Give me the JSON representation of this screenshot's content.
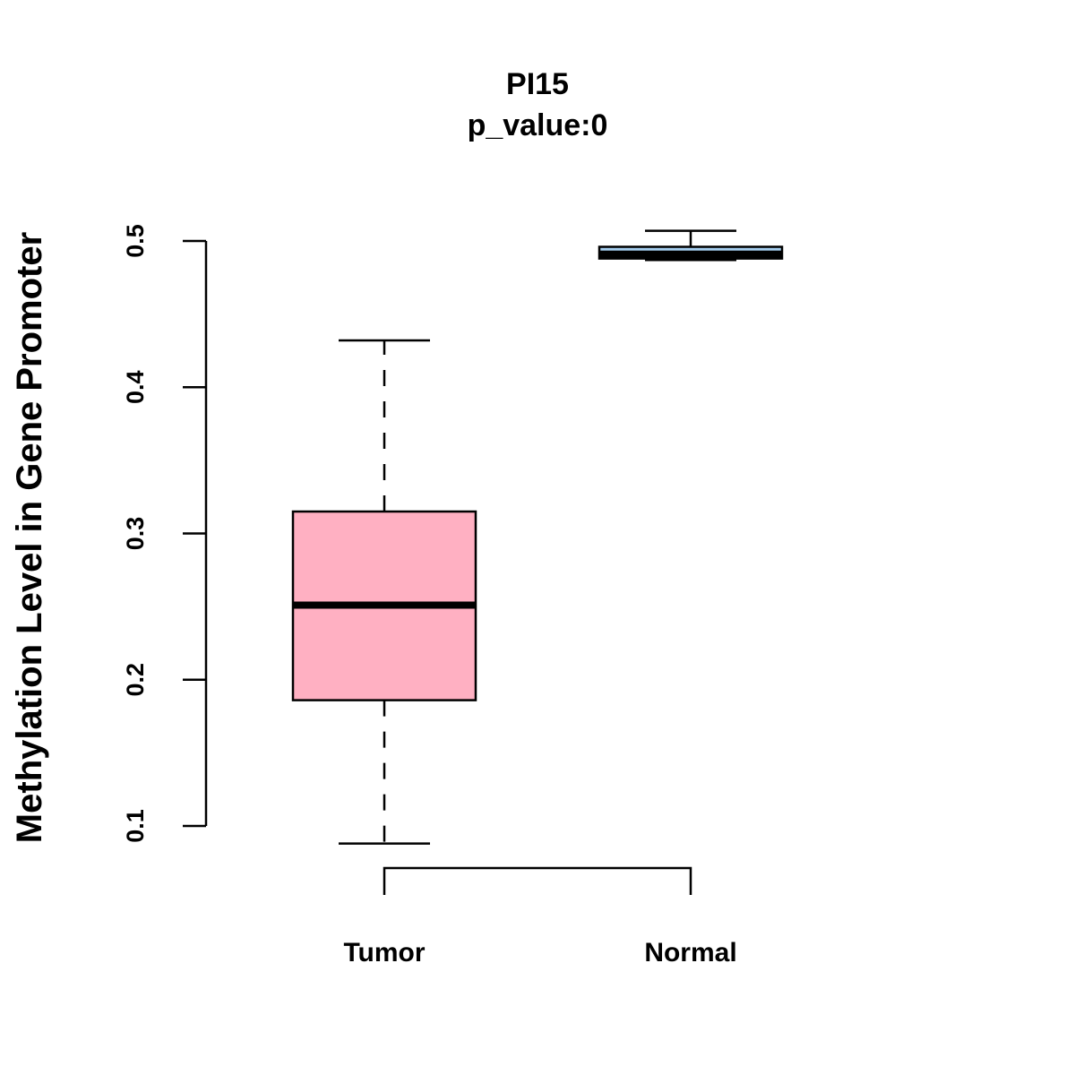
{
  "chart_data": {
    "type": "boxplot",
    "title": "PI15",
    "subtitle": "p_value:0",
    "xlabel": "",
    "ylabel": "Methylation Level in Gene Promoter",
    "ylim": [
      0.1,
      0.5
    ],
    "yticks": [
      0.1,
      0.2,
      0.3,
      0.4,
      0.5
    ],
    "yticks_labels": [
      "0.1",
      "0.2",
      "0.3",
      "0.4",
      "0.5"
    ],
    "grid": false,
    "categories": [
      "Tumor",
      "Normal"
    ],
    "series": [
      {
        "category": "Tumor",
        "min": 0.088,
        "q1": 0.186,
        "median": 0.251,
        "q3": 0.315,
        "max": 0.432,
        "color": "#FFB0C2"
      },
      {
        "category": "Normal",
        "min": 0.487,
        "q1": 0.488,
        "median": 0.491,
        "q3": 0.496,
        "max": 0.507,
        "color": "#A6CFF0"
      }
    ],
    "comparison_bracket": [
      "Tumor",
      "Normal"
    ]
  }
}
